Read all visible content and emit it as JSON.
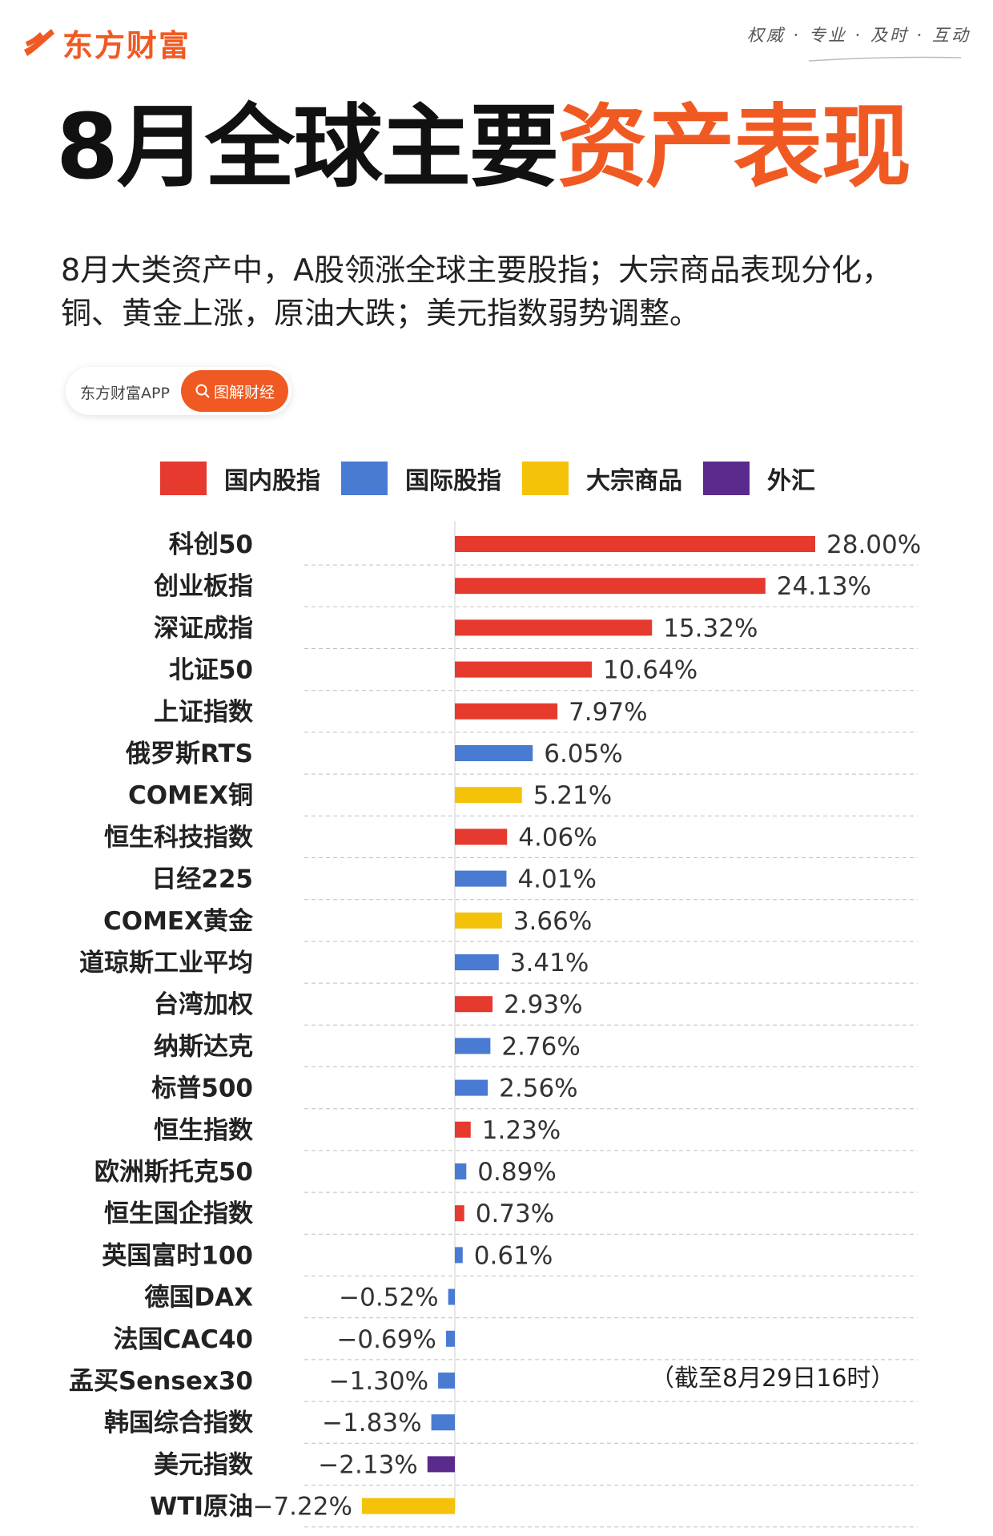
{
  "brand": {
    "name": "东方财富",
    "slogan": "权威 · 专业 · 及时 · 互动"
  },
  "headline": {
    "part1": "8月全球主要",
    "part2": "资产表现"
  },
  "subtitle": "8月大类资产中，A股领涨全球主要股指；大宗商品表现分化，铜、黄金上涨，原油大跌；美元指数弱势调整。",
  "pill": {
    "left": "东方财富APP",
    "right": "图解财经"
  },
  "colors": {
    "brand": "#f05a22",
    "domestic": "#e63a2e",
    "international": "#4a7bd3",
    "commodity": "#f5c20a",
    "fx": "#5a2a8c"
  },
  "legend": [
    {
      "label": "国内股指",
      "color": "#e63a2e"
    },
    {
      "label": "国际股指",
      "color": "#4a7bd3"
    },
    {
      "label": "大宗商品",
      "color": "#f5c20a"
    },
    {
      "label": "外汇",
      "color": "#5a2a8c"
    }
  ],
  "footnote": "（截至8月29日16时）",
  "chart_data": {
    "type": "bar",
    "orientation": "horizontal",
    "title": "8月全球主要资产表现",
    "unit": "%",
    "xlim": [
      -7.22,
      28.0
    ],
    "grid": true,
    "legend_position": "top",
    "items": [
      {
        "name": "科创50",
        "value": 28.0,
        "label": "28.00%",
        "group": "国内股指"
      },
      {
        "name": "创业板指",
        "value": 24.13,
        "label": "24.13%",
        "group": "国内股指"
      },
      {
        "name": "深证成指",
        "value": 15.32,
        "label": "15.32%",
        "group": "国内股指"
      },
      {
        "name": "北证50",
        "value": 10.64,
        "label": "10.64%",
        "group": "国内股指"
      },
      {
        "name": "上证指数",
        "value": 7.97,
        "label": "7.97%",
        "group": "国内股指"
      },
      {
        "name": "俄罗斯RTS",
        "value": 6.05,
        "label": "6.05%",
        "group": "国际股指"
      },
      {
        "name": "COMEX铜",
        "value": 5.21,
        "label": "5.21%",
        "group": "大宗商品"
      },
      {
        "name": "恒生科技指数",
        "value": 4.06,
        "label": "4.06%",
        "group": "国内股指"
      },
      {
        "name": "日经225",
        "value": 4.01,
        "label": "4.01%",
        "group": "国际股指"
      },
      {
        "name": "COMEX黄金",
        "value": 3.66,
        "label": "3.66%",
        "group": "大宗商品"
      },
      {
        "name": "道琼斯工业平均",
        "value": 3.41,
        "label": "3.41%",
        "group": "国际股指"
      },
      {
        "name": "台湾加权",
        "value": 2.93,
        "label": "2.93%",
        "group": "国内股指"
      },
      {
        "name": "纳斯达克",
        "value": 2.76,
        "label": "2.76%",
        "group": "国际股指"
      },
      {
        "name": "标普500",
        "value": 2.56,
        "label": "2.56%",
        "group": "国际股指"
      },
      {
        "name": "恒生指数",
        "value": 1.23,
        "label": "1.23%",
        "group": "国内股指"
      },
      {
        "name": "欧洲斯托克50",
        "value": 0.89,
        "label": "0.89%",
        "group": "国际股指"
      },
      {
        "name": "恒生国企指数",
        "value": 0.73,
        "label": "0.73%",
        "group": "国内股指"
      },
      {
        "name": "英国富时100",
        "value": 0.61,
        "label": "0.61%",
        "group": "国际股指"
      },
      {
        "name": "德国DAX",
        "value": -0.52,
        "label": "−0.52%",
        "group": "国际股指"
      },
      {
        "name": "法国CAC40",
        "value": -0.69,
        "label": "−0.69%",
        "group": "国际股指"
      },
      {
        "name": "孟买Sensex30",
        "value": -1.3,
        "label": "−1.30%",
        "group": "国际股指"
      },
      {
        "name": "韩国综合指数",
        "value": -1.83,
        "label": "−1.83%",
        "group": "国际股指"
      },
      {
        "name": "美元指数",
        "value": -2.13,
        "label": "−2.13%",
        "group": "外汇"
      },
      {
        "name": "WTI原油",
        "value": -7.22,
        "label": "−7.22%",
        "group": "大宗商品"
      }
    ]
  }
}
